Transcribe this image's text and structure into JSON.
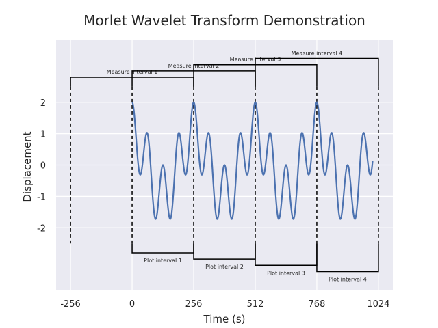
{
  "chart_data": {
    "type": "line",
    "title": "Morlet Wavelet Transform Demonstration",
    "xlabel": "Time (s)",
    "ylabel": "Displacement",
    "xlim": [
      -316,
      1084
    ],
    "ylim": [
      -4.0,
      4.0
    ],
    "x_ticks": [
      -256,
      0,
      256,
      512,
      768,
      1024
    ],
    "x_tick_labels": [
      "-256",
      "0",
      "256",
      "512",
      "768",
      "1024"
    ],
    "y_ticks": [
      2,
      1,
      0,
      -1,
      -2
    ],
    "y_tick_labels": [
      "2",
      "1",
      "0",
      "-1",
      "-2"
    ],
    "grid": true,
    "background_color": "#EAEAF2",
    "line_color": "#4C72B0",
    "signal": {
      "x_start": 0,
      "x_end": 1000,
      "formula": "y = cos(2*pi*t/256) + cos(2*pi*t/64)"
    },
    "measure_intervals": [
      {
        "label": "Measure interval 1",
        "x": [
          -256,
          256
        ],
        "y_top": 2.8
      },
      {
        "label": "Measure interval 2",
        "x": [
          0,
          512
        ],
        "y_top": 3.0
      },
      {
        "label": "Measure interval 3",
        "x": [
          256,
          768
        ],
        "y_top": 3.2
      },
      {
        "label": "Measure interval 4",
        "x": [
          512,
          1024
        ],
        "y_top": 3.4
      }
    ],
    "plot_intervals": [
      {
        "label": "Plot interval 1",
        "x": [
          0,
          256
        ],
        "y_bottom": -2.8
      },
      {
        "label": "Plot interval 2",
        "x": [
          256,
          512
        ],
        "y_bottom": -3.0
      },
      {
        "label": "Plot interval 3",
        "x": [
          512,
          768
        ],
        "y_bottom": -3.2
      },
      {
        "label": "Plot interval 4",
        "x": [
          768,
          1024
        ],
        "y_bottom": -3.4
      }
    ],
    "dashed_verticals": [
      -256,
      0,
      256,
      512,
      768,
      1024
    ],
    "dashed_range": [
      -2.5,
      2.5
    ]
  }
}
